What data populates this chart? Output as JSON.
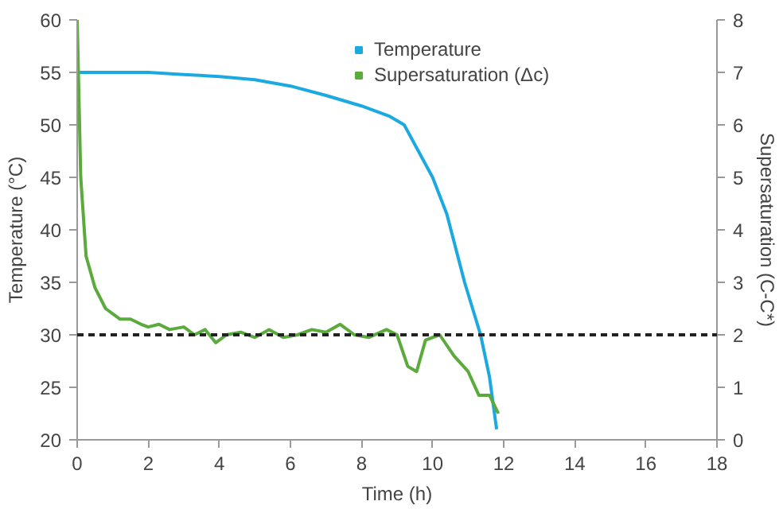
{
  "chart_data": {
    "type": "line",
    "xlabel": "Time (h)",
    "ylabel": "Temperature (°C)",
    "y2label": "Supersaturation (C-C*)",
    "xlim": [
      0,
      18
    ],
    "xticks": [
      0,
      2,
      4,
      6,
      8,
      10,
      12,
      14,
      16,
      18
    ],
    "ylim": [
      20,
      60
    ],
    "yticks": [
      20,
      25,
      30,
      35,
      40,
      45,
      50,
      55,
      60
    ],
    "y2lim": [
      0,
      8
    ],
    "y2ticks": [
      0,
      1,
      2,
      3,
      4,
      5,
      6,
      7,
      8
    ],
    "grid": false,
    "legend": "top right",
    "marker": "none",
    "line_style": "solid",
    "ref_lines": [
      {
        "axis": "y",
        "value": 30,
        "label": null,
        "color": "#222222",
        "line_style": "dashed"
      }
    ],
    "series": [
      {
        "name": "Temperature",
        "color": "#1ba9e1",
        "x": [
          0,
          2,
          3,
          4,
          5,
          6,
          7,
          8,
          8.8,
          9.2,
          9.6,
          10,
          10.4,
          10.9,
          11.35,
          11.6,
          11.8
        ],
        "values": [
          55,
          55,
          54.8,
          54.6,
          54.3,
          53.7,
          52.8,
          51.8,
          50.8,
          50,
          47.5,
          45,
          41.5,
          35,
          30,
          26,
          21
        ]
      },
      {
        "name": "Supersaturation (Δc)",
        "color": "#5aaa3c",
        "axis": "y2",
        "x": [
          0,
          0.1,
          0.25,
          0.5,
          0.8,
          1.2,
          1.5,
          1.8,
          2,
          2.3,
          2.6,
          3,
          3.3,
          3.6,
          3.9,
          4.2,
          4.6,
          5,
          5.4,
          5.8,
          6.2,
          6.6,
          7,
          7.4,
          7.8,
          8.2,
          8.7,
          9,
          9.3,
          9.55,
          9.8,
          10.2,
          10.6,
          11,
          11.3,
          11.6,
          11.85
        ],
        "values": [
          8,
          5,
          3.5,
          2.9,
          2.5,
          2.3,
          2.3,
          2.2,
          2.15,
          2.2,
          2.1,
          2.15,
          2.0,
          2.1,
          1.85,
          2.0,
          2.05,
          1.95,
          2.1,
          1.95,
          2.0,
          2.1,
          2.05,
          2.2,
          2.0,
          1.95,
          2.1,
          2.0,
          1.4,
          1.3,
          1.9,
          2.0,
          1.6,
          1.3,
          0.85,
          0.85,
          0.5
        ]
      }
    ]
  }
}
